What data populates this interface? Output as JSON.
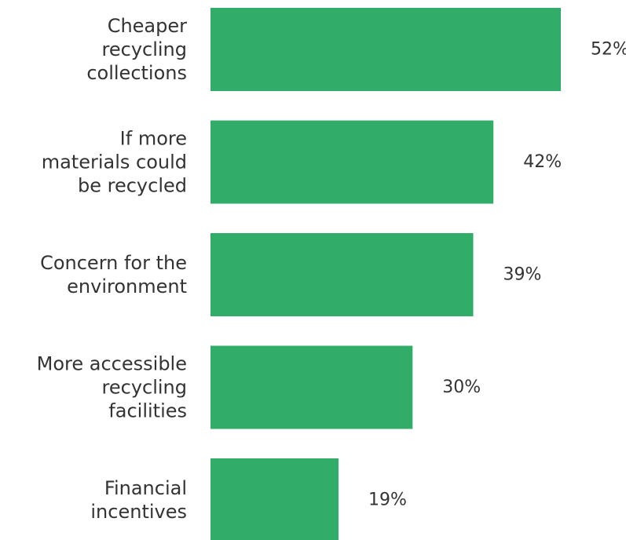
{
  "chart_data": {
    "type": "bar",
    "orientation": "horizontal",
    "categories": [
      "Cheaper recycling collections",
      "If more materials could be recycled",
      "Concern for the environment",
      "More accessible recycling facilities",
      "Financial incentives"
    ],
    "category_lines": [
      [
        "Cheaper",
        "recycling",
        "collections"
      ],
      [
        "If more",
        "materials could",
        "be recycled"
      ],
      [
        "Concern for the",
        "environment"
      ],
      [
        "More accessible",
        "recycling",
        "facilities"
      ],
      [
        "Financial",
        "incentives"
      ]
    ],
    "values": [
      52,
      42,
      39,
      30,
      19
    ],
    "value_labels": [
      "52%",
      "42%",
      "39%",
      "30%",
      "19%"
    ],
    "unit": "%",
    "xlim": [
      0,
      52
    ],
    "grid": false,
    "legend": "none",
    "colors": {
      "bar": "#31ad69",
      "text": "#333333"
    }
  }
}
